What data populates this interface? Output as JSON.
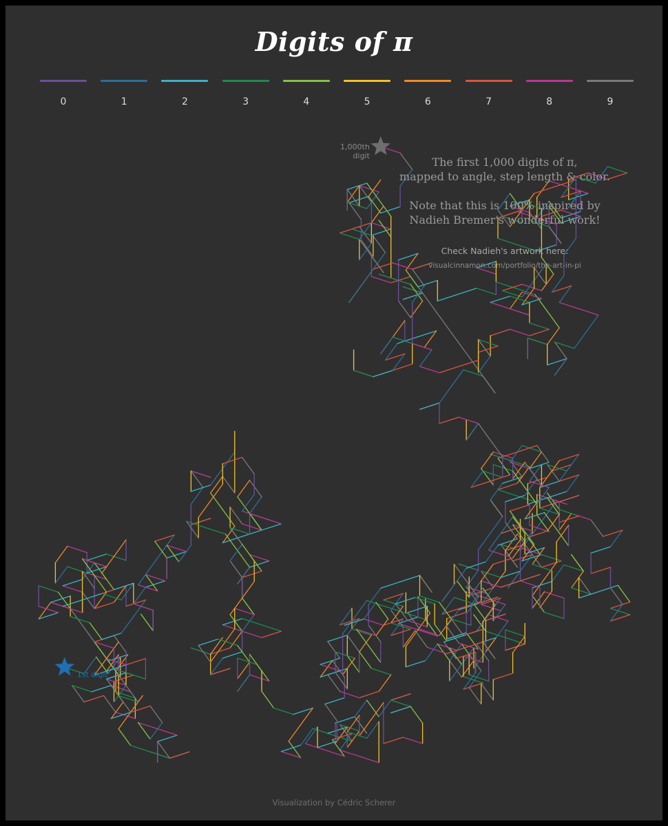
{
  "title": "Digits of π",
  "subtitle_lines": [
    "The first 1,000 digits of π,",
    "mapped to angle, step length & color."
  ],
  "note_lines": [
    "Note that this is 100% inspired by",
    "Nadieh Bremer's wonderful work!"
  ],
  "check_text": "Check Nadieh's artwork here:",
  "url_text": "visualcinnamon.com/portfolio/the-art-in-pi",
  "credit": "Visualization by Cédric Scherer",
  "colors": {
    "background": "#2f2f2f",
    "start_star": "#1f6fb2",
    "end_star": "#6e6e6e"
  },
  "chart_data": {
    "type": "line",
    "encoding": "digits mapped to angle, step length & color",
    "legend": [
      {
        "digit": "0",
        "color": "#6b4f9c"
      },
      {
        "digit": "1",
        "color": "#2c6e9b"
      },
      {
        "digit": "2",
        "color": "#3bb3c3"
      },
      {
        "digit": "3",
        "color": "#1f8a4c"
      },
      {
        "digit": "4",
        "color": "#86c443"
      },
      {
        "digit": "5",
        "color": "#f3c12a"
      },
      {
        "digit": "6",
        "color": "#f08a24"
      },
      {
        "digit": "7",
        "color": "#d9543f"
      },
      {
        "digit": "8",
        "color": "#b8398f"
      },
      {
        "digit": "9",
        "color": "#7a7a7a"
      }
    ],
    "digits": "3141592653589793238462643383279502884197169399375105820974944592307816406286208998628034825342117067982148086513282306647093844609550582231725359408128481117450284102701938521105559644622948954930381964428810975665933446128475648233786783165271201909145648566923460348610454326648213393607260249141273724587006606315588174881520920962829254091715364367892590360011330530548820466521384146951941511609433057270365759591953092186117381932611793105118548074462379962749567351885752724891227938183011949129833673362440656643086021394946395224737190702179860943702770539217176293176752384674818467669405132000568127145263560827785771342757789609173637178721468440901224953430146549585371050792279689258923542019956112129021960864034418159813629774771309960518707211349999998372978049951059731732816096318595024459455346908302642522308253344685035261931188171010003137838752886587533208381420617177669147303598253490428755468731159562863882353787593751957781857780532171226806613001927876611195909216420198",
    "start_label": "1st digit",
    "end_label_lines": [
      "1,000th",
      "digit"
    ]
  }
}
